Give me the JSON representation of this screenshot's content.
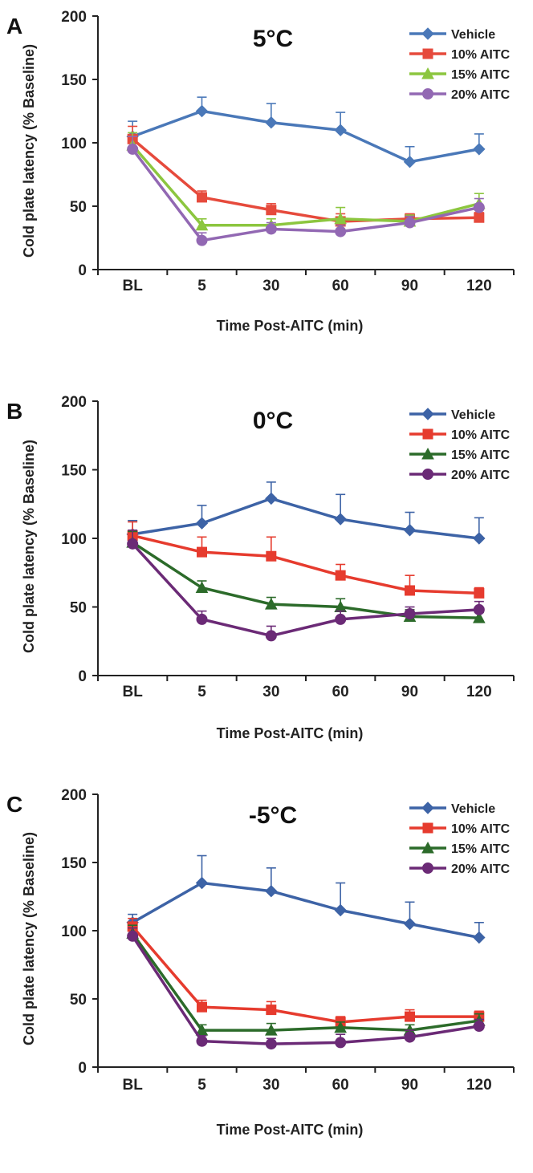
{
  "chart_data": [
    {
      "type": "line",
      "panel": "A",
      "title": "5°C",
      "xlabel": "Time Post-AITC (min)",
      "ylabel": "Cold plate latency (% Baseline)",
      "categories": [
        "BL",
        "5",
        "30",
        "60",
        "90",
        "120"
      ],
      "ylim": [
        0,
        200
      ],
      "yticks": [
        "0",
        "50",
        "100",
        "150",
        "200"
      ],
      "legend_position": "top-right",
      "grid": false,
      "series": [
        {
          "name": "Vehicle",
          "color": "#4a78b8",
          "marker": "diamond",
          "values": [
            105,
            125,
            116,
            110,
            85,
            95
          ],
          "err": [
            12,
            11,
            15,
            14,
            12,
            12
          ]
        },
        {
          "name": "10% AITC",
          "color": "#e64a3c",
          "marker": "square",
          "values": [
            103,
            57,
            47,
            38,
            40,
            41
          ],
          "err": [
            10,
            5,
            5,
            6,
            4,
            4
          ]
        },
        {
          "name": "15% AITC",
          "color": "#8cc63f",
          "marker": "triangle",
          "values": [
            98,
            35,
            35,
            40,
            38,
            52
          ],
          "err": [
            10,
            5,
            5,
            9,
            5,
            8
          ]
        },
        {
          "name": "20% AITC",
          "color": "#9268b3",
          "marker": "circle",
          "values": [
            95,
            23,
            32,
            30,
            37,
            49
          ],
          "err": [
            10,
            6,
            5,
            5,
            5,
            7
          ]
        }
      ]
    },
    {
      "type": "line",
      "panel": "B",
      "title": "0°C",
      "xlabel": "Time Post-AITC (min)",
      "ylabel": "Cold plate latency (% Baseline)",
      "categories": [
        "BL",
        "5",
        "30",
        "60",
        "90",
        "120"
      ],
      "ylim": [
        0,
        200
      ],
      "yticks": [
        "0",
        "50",
        "100",
        "150",
        "200"
      ],
      "legend_position": "top-right",
      "grid": false,
      "series": [
        {
          "name": "Vehicle",
          "color": "#3d63a6",
          "marker": "diamond",
          "values": [
            103,
            111,
            129,
            114,
            106,
            100
          ],
          "err": [
            10,
            13,
            12,
            18,
            13,
            15
          ]
        },
        {
          "name": "10% AITC",
          "color": "#e63b2e",
          "marker": "square",
          "values": [
            102,
            90,
            87,
            73,
            62,
            60
          ],
          "err": [
            10,
            11,
            14,
            8,
            11,
            4
          ]
        },
        {
          "name": "15% AITC",
          "color": "#2c6b2a",
          "marker": "triangle",
          "values": [
            97,
            64,
            52,
            50,
            43,
            42
          ],
          "err": [
            8,
            5,
            5,
            6,
            5,
            4
          ]
        },
        {
          "name": "20% AITC",
          "color": "#6b2a76",
          "marker": "circle",
          "values": [
            96,
            41,
            29,
            41,
            45,
            48
          ],
          "err": [
            10,
            6,
            7,
            6,
            5,
            6
          ]
        }
      ]
    },
    {
      "type": "line",
      "panel": "C",
      "title": "-5°C",
      "xlabel": "Time Post-AITC (min)",
      "ylabel": "Cold plate latency (% Baseline)",
      "categories": [
        "BL",
        "5",
        "30",
        "60",
        "90",
        "120"
      ],
      "ylim": [
        0,
        200
      ],
      "yticks": [
        "0",
        "50",
        "100",
        "150",
        "200"
      ],
      "legend_position": "top-right",
      "grid": false,
      "series": [
        {
          "name": "Vehicle",
          "color": "#3d63a6",
          "marker": "diamond",
          "values": [
            106,
            135,
            129,
            115,
            105,
            95
          ],
          "err": [
            6,
            20,
            17,
            20,
            16,
            11
          ]
        },
        {
          "name": "10% AITC",
          "color": "#e63b2e",
          "marker": "square",
          "values": [
            103,
            44,
            42,
            33,
            37,
            37
          ],
          "err": [
            6,
            5,
            6,
            4,
            5,
            4
          ]
        },
        {
          "name": "15% AITC",
          "color": "#2c6b2a",
          "marker": "triangle",
          "values": [
            98,
            27,
            27,
            29,
            27,
            34
          ],
          "err": [
            6,
            4,
            5,
            4,
            4,
            5
          ]
        },
        {
          "name": "20% AITC",
          "color": "#6b2a76",
          "marker": "circle",
          "values": [
            96,
            19,
            17,
            18,
            22,
            30
          ],
          "err": [
            6,
            4,
            4,
            6,
            5,
            5
          ]
        }
      ]
    }
  ]
}
